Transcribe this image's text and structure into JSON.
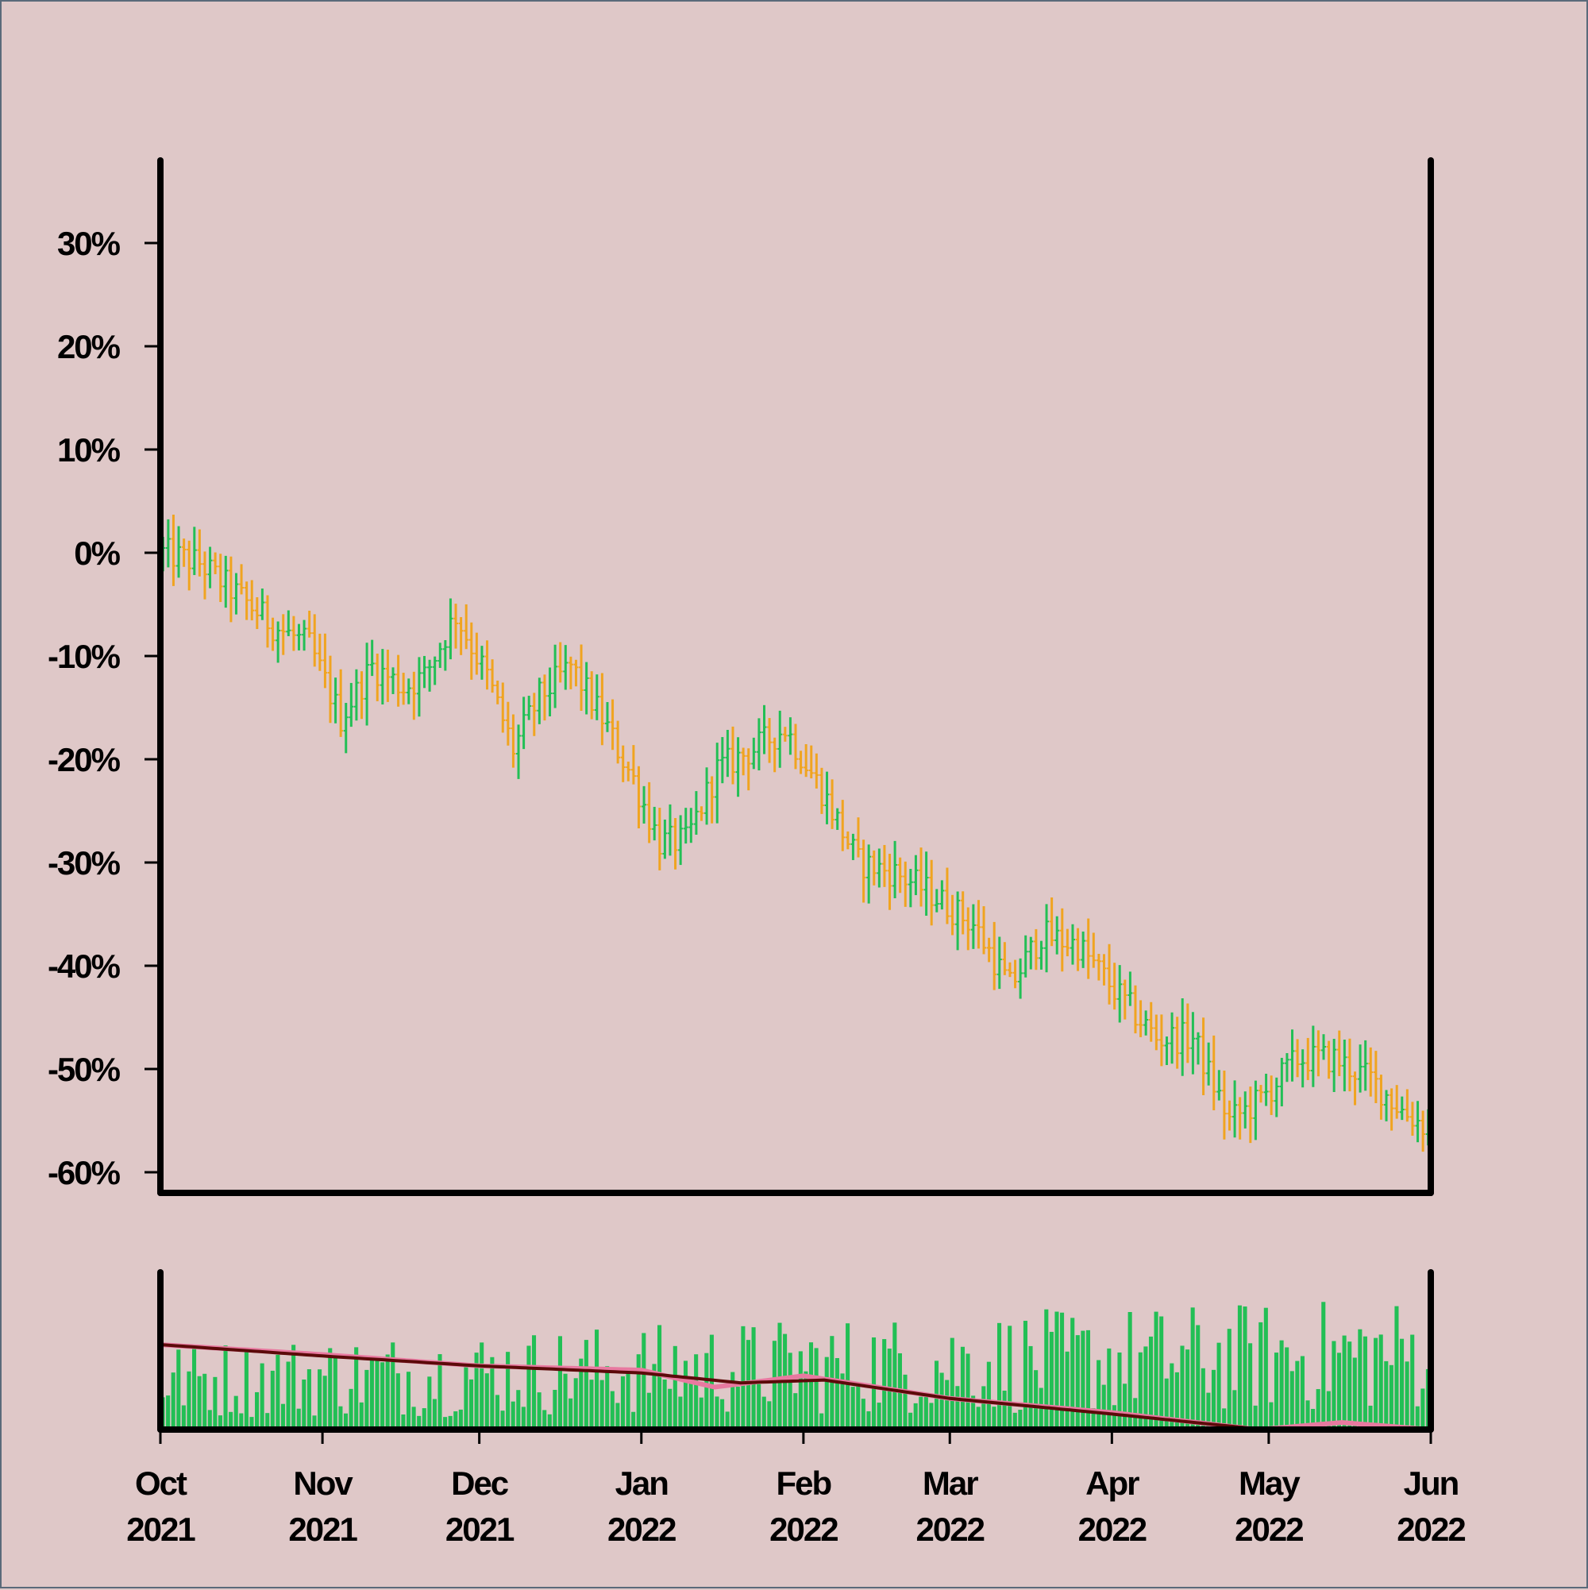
{
  "colors": {
    "background": "#dfc8c8",
    "up": "#22bf55",
    "down": "#f0a420",
    "volume": "#22bf55",
    "ma_fast": "#e879a0",
    "ma_slow": "#5c0a0a",
    "frame": "#000000"
  },
  "chart_data": [
    {
      "type": "ohlc",
      "panel": "price",
      "y_unit": "% change",
      "ylim": [
        -62,
        38
      ],
      "y_ticks": [
        30,
        20,
        10,
        0,
        -10,
        -20,
        -30,
        -40,
        -50,
        -60
      ],
      "y_tick_labels": [
        "30%",
        "20%",
        "10%",
        "0%",
        "-10%",
        "-20%",
        "-30%",
        "-40%",
        "-50%",
        "-60%"
      ],
      "x_range": [
        "2021-10-01",
        "2022-06-01"
      ],
      "grid": false,
      "series": [
        {
          "anchors": [
            [
              "2021-10-01",
              0
            ],
            [
              "2021-10-08",
              -1
            ],
            [
              "2021-10-15",
              -4
            ],
            [
              "2021-10-22",
              -7
            ],
            [
              "2021-10-29",
              -9
            ],
            [
              "2021-11-04",
              -16
            ],
            [
              "2021-11-10",
              -11
            ],
            [
              "2021-11-16",
              -13
            ],
            [
              "2021-11-20",
              -12
            ],
            [
              "2021-11-26",
              -6
            ],
            [
              "2021-12-02",
              -12
            ],
            [
              "2021-12-07",
              -19
            ],
            [
              "2021-12-12",
              -14
            ],
            [
              "2021-12-18",
              -11
            ],
            [
              "2021-12-24",
              -16
            ],
            [
              "2021-12-30",
              -22
            ],
            [
              "2022-01-04",
              -28
            ],
            [
              "2022-01-09",
              -28
            ],
            [
              "2022-01-15",
              -21
            ],
            [
              "2022-01-22",
              -19
            ],
            [
              "2022-01-28",
              -17
            ],
            [
              "2022-02-04",
              -23
            ],
            [
              "2022-02-11",
              -30
            ],
            [
              "2022-02-18",
              -31
            ],
            [
              "2022-02-25",
              -33
            ],
            [
              "2022-03-05",
              -36
            ],
            [
              "2022-03-12",
              -42
            ],
            [
              "2022-03-18",
              -37
            ],
            [
              "2022-03-25",
              -38
            ],
            [
              "2022-04-02",
              -43
            ],
            [
              "2022-04-09",
              -47
            ],
            [
              "2022-04-16",
              -47
            ],
            [
              "2022-04-23",
              -55
            ],
            [
              "2022-04-29",
              -53
            ],
            [
              "2022-05-06",
              -49
            ],
            [
              "2022-05-13",
              -49
            ],
            [
              "2022-05-20",
              -51
            ],
            [
              "2022-05-26",
              -54
            ],
            [
              "2022-06-01",
              -56
            ]
          ]
        }
      ]
    },
    {
      "type": "bar",
      "panel": "volume",
      "x_range": [
        "2021-10-01",
        "2022-06-01"
      ],
      "x_ticks": [
        "2021-10-01",
        "2021-11-01",
        "2021-12-01",
        "2022-01-01",
        "2022-02-01",
        "2022-03-01",
        "2022-04-01",
        "2022-05-01",
        "2022-06-01"
      ],
      "x_tick_labels": [
        [
          "Oct",
          "2021"
        ],
        [
          "Nov",
          "2021"
        ],
        [
          "Dec",
          "2021"
        ],
        [
          "Jan",
          "2022"
        ],
        [
          "Feb",
          "2022"
        ],
        [
          "Mar",
          "2022"
        ],
        [
          "Apr",
          "2022"
        ],
        [
          "May",
          "2022"
        ],
        [
          "Jun",
          "2022"
        ]
      ],
      "moving_averages": [
        {
          "anchors": [
            [
              "2021-10-01",
              0.6
            ],
            [
              "2021-11-01",
              0.53
            ],
            [
              "2021-12-01",
              0.45
            ],
            [
              "2022-01-01",
              0.42
            ],
            [
              "2022-01-15",
              0.3
            ],
            [
              "2022-02-01",
              0.38
            ],
            [
              "2022-03-01",
              0.22
            ],
            [
              "2022-04-01",
              0.12
            ],
            [
              "2022-04-29",
              0.0
            ],
            [
              "2022-05-15",
              0.05
            ],
            [
              "2022-06-01",
              0.0
            ]
          ]
        },
        {
          "anchors": [
            [
              "2021-10-01",
              0.6
            ],
            [
              "2021-11-01",
              0.52
            ],
            [
              "2021-12-01",
              0.45
            ],
            [
              "2022-01-01",
              0.4
            ],
            [
              "2022-01-20",
              0.33
            ],
            [
              "2022-02-05",
              0.35
            ],
            [
              "2022-03-01",
              0.22
            ],
            [
              "2022-04-01",
              0.11
            ],
            [
              "2022-04-30",
              0.0
            ],
            [
              "2022-06-01",
              0.0
            ]
          ]
        }
      ]
    }
  ]
}
